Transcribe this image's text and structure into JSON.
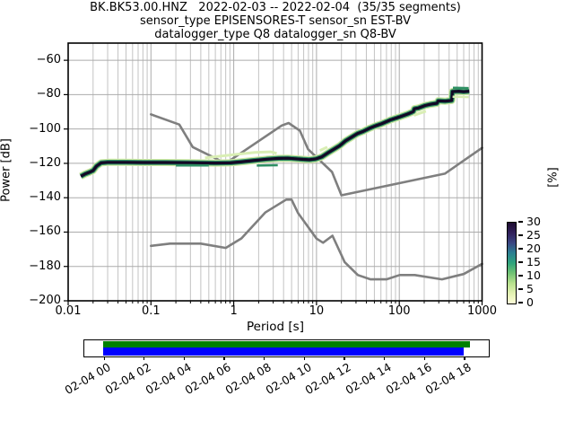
{
  "title": {
    "line1": "BK.BK53.00.HNZ   2022-02-03 -- 2022-02-04  (35/35 segments)",
    "line2": "sensor_type EPISENSORES-T sensor_sn EST-BV",
    "line3": "datalogger_type Q8 datalogger_sn Q8-BV"
  },
  "axes": {
    "xlabel": "Period [s]",
    "ylabel": "Power [dB]",
    "xscale": "log",
    "xlim": [
      0.01,
      1000
    ],
    "ylim": [
      -200,
      -50
    ],
    "xticks": [
      {
        "label": "0.01",
        "value": 0.01
      },
      {
        "label": "0.1",
        "value": 0.1
      },
      {
        "label": "1",
        "value": 1
      },
      {
        "label": "10",
        "value": 10
      },
      {
        "label": "100",
        "value": 100
      },
      {
        "label": "1000",
        "value": 1000
      }
    ],
    "yticks": [
      {
        "label": "−60",
        "value": -60
      },
      {
        "label": "−80",
        "value": -80
      },
      {
        "label": "−100",
        "value": -100
      },
      {
        "label": "−120",
        "value": -120
      },
      {
        "label": "−140",
        "value": -140
      },
      {
        "label": "−160",
        "value": -160
      },
      {
        "label": "−180",
        "value": -180
      },
      {
        "label": "−200",
        "value": -200
      }
    ],
    "grid": true,
    "grid_major_color": "#ababab",
    "grid_minor_color": "#c3c3c3"
  },
  "colorbar": {
    "label": "[%]",
    "ticks": [
      {
        "label": "30",
        "value": 30
      },
      {
        "label": "25",
        "value": 25
      },
      {
        "label": "20",
        "value": 20
      },
      {
        "label": "15",
        "value": 15
      },
      {
        "label": "10",
        "value": 10
      },
      {
        "label": "5",
        "value": 5
      },
      {
        "label": "0",
        "value": 0
      }
    ],
    "vmin": 0,
    "vmax": 30,
    "gradient_bottom_to_top": [
      "#fdfdd8",
      "#e3f1b2",
      "#b8e18e",
      "#71c274",
      "#2fa47c",
      "#2b7f92",
      "#3a4582",
      "#31205a",
      "#1e0c30"
    ]
  },
  "chart_data": {
    "type": "line",
    "title": "BK.BK53.00.HNZ 2022-02-03 -- 2022-02-04 (35/35 segments)",
    "xlabel": "Period [s]",
    "ylabel": "Power [dB]",
    "xscale": "log",
    "xlim": [
      0.01,
      1000
    ],
    "ylim": [
      -200,
      -50
    ],
    "legend": "none",
    "series": [
      {
        "name": "psd-histogram-mode",
        "color": "#120825",
        "band_layers": [
          {
            "color": "#cfe7a4",
            "width": 8
          },
          {
            "color": "#2e8f63",
            "width": 5.5
          },
          {
            "color": "#120825",
            "width": 3.2
          }
        ],
        "points": [
          [
            0.0142,
            -127.5
          ],
          [
            0.016,
            -126.2
          ],
          [
            0.018,
            -125.2
          ],
          [
            0.02,
            -124.2
          ],
          [
            0.022,
            -121.6
          ],
          [
            0.025,
            -119.7
          ],
          [
            0.03,
            -119.4
          ],
          [
            0.05,
            -119.4
          ],
          [
            0.08,
            -119.5
          ],
          [
            0.15,
            -119.5
          ],
          [
            0.3,
            -119.6
          ],
          [
            0.6,
            -119.8
          ],
          [
            0.9,
            -119.7
          ],
          [
            1.2,
            -119.2
          ],
          [
            1.7,
            -118.4
          ],
          [
            2.5,
            -117.6
          ],
          [
            3.5,
            -117.1
          ],
          [
            4.5,
            -117.0
          ],
          [
            5.5,
            -117.3
          ],
          [
            7.0,
            -117.7
          ],
          [
            8.2,
            -117.9
          ],
          [
            9.8,
            -117.4
          ],
          [
            11.6,
            -116.2
          ],
          [
            13.7,
            -113.9
          ],
          [
            16.2,
            -111.8
          ],
          [
            19.1,
            -109.7
          ],
          [
            22.4,
            -106.9
          ],
          [
            26.4,
            -104.8
          ],
          [
            31.2,
            -102.7
          ],
          [
            36.9,
            -101.3
          ],
          [
            43.6,
            -99.6
          ],
          [
            51.4,
            -98.2
          ],
          [
            60.9,
            -97.0
          ],
          [
            78.6,
            -94.7
          ],
          [
            100,
            -93.0
          ],
          [
            128,
            -91.2
          ],
          [
            148,
            -89.8
          ],
          [
            152,
            -88.2
          ],
          [
            170,
            -87.8
          ],
          [
            205,
            -86.3
          ],
          [
            240,
            -85.6
          ],
          [
            285,
            -85.0
          ],
          [
            295,
            -83.6
          ],
          [
            360,
            -83.8
          ],
          [
            430,
            -83.4
          ],
          [
            438,
            -78.2
          ],
          [
            520,
            -78.0
          ],
          [
            600,
            -78.3
          ],
          [
            700,
            -78.0
          ]
        ]
      },
      {
        "name": "noise-model-low-nlnm",
        "color": "#7f7f7f",
        "width": 2.6,
        "points": [
          [
            0.1,
            -168.0
          ],
          [
            0.17,
            -166.7
          ],
          [
            0.4,
            -166.7
          ],
          [
            0.8,
            -169.2
          ],
          [
            1.24,
            -163.7
          ],
          [
            2.4,
            -148.6
          ],
          [
            4.3,
            -141.1
          ],
          [
            5.0,
            -141.1
          ],
          [
            6.0,
            -149.0
          ],
          [
            10.0,
            -163.8
          ],
          [
            12.0,
            -166.2
          ],
          [
            15.6,
            -162.1
          ],
          [
            21.9,
            -177.5
          ],
          [
            31.6,
            -185.0
          ],
          [
            45.0,
            -187.5
          ],
          [
            70.0,
            -187.5
          ],
          [
            101.0,
            -185.0
          ],
          [
            154.0,
            -185.0
          ],
          [
            328.0,
            -187.5
          ],
          [
            600.0,
            -184.4
          ],
          [
            1000.0,
            -178.5
          ]
        ]
      },
      {
        "name": "noise-model-high-nhnm",
        "color": "#7f7f7f",
        "width": 2.6,
        "points": [
          [
            0.1,
            -91.5
          ],
          [
            0.22,
            -97.4
          ],
          [
            0.32,
            -110.5
          ],
          [
            0.8,
            -120.0
          ],
          [
            3.8,
            -98.0
          ],
          [
            4.6,
            -96.5
          ],
          [
            6.3,
            -101.0
          ],
          [
            7.9,
            -111.8
          ],
          [
            15.4,
            -125.0
          ],
          [
            20.0,
            -138.6
          ],
          [
            354.8,
            -126.0
          ],
          [
            1000.0,
            -111.0
          ]
        ]
      }
    ],
    "speckles": [
      {
        "color": "#d9eeb4",
        "width": 3,
        "points": [
          [
            0.45,
            -116.8
          ],
          [
            1.05,
            -114.8
          ],
          [
            1.8,
            -113.6
          ],
          [
            2.8,
            -113.3
          ],
          [
            3.3,
            -114.2
          ]
        ]
      },
      {
        "color": "#2e8f63",
        "width": 2.5,
        "points": [
          [
            1.9,
            -121.3
          ],
          [
            3.4,
            -121.1
          ]
        ]
      },
      {
        "color": "#d9eeb4",
        "width": 3,
        "points": [
          [
            11,
            -112.5
          ],
          [
            13.5,
            -110.5
          ]
        ]
      },
      {
        "color": "#d9eeb4",
        "width": 3,
        "points": [
          [
            150,
            -92.0
          ],
          [
            210,
            -89.6
          ]
        ]
      },
      {
        "color": "#d9eeb4",
        "width": 2.5,
        "points": [
          [
            440,
            -81.2
          ],
          [
            690,
            -81.4
          ]
        ]
      },
      {
        "color": "#2e8f63",
        "width": 2.5,
        "points": [
          [
            445,
            -76.0
          ],
          [
            688,
            -76.2
          ]
        ]
      },
      {
        "color": "#2e8f63",
        "width": 2.5,
        "points": [
          [
            0.2,
            -121.2
          ],
          [
            0.5,
            -121.2
          ]
        ]
      }
    ]
  },
  "timeline": {
    "tick_labels": [
      "02-04 00",
      "02-04 02",
      "02-04 04",
      "02-04 06",
      "02-04 08",
      "02-04 10",
      "02-04 12",
      "02-04 14",
      "02-04 16",
      "02-04 18"
    ],
    "tick_step_hours": 2,
    "bars": [
      {
        "name": "coverage-green",
        "color": "#008000",
        "start_hours": 0,
        "end_hours": 18.3
      },
      {
        "name": "coverage-blue",
        "color": "#0000ff",
        "start_hours": 0,
        "end_hours": 18.0
      }
    ]
  }
}
